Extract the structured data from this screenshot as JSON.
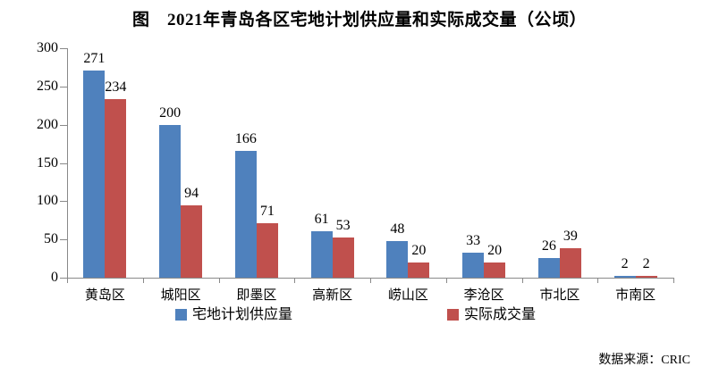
{
  "chart_data": {
    "type": "bar",
    "title": "图　2021年青岛各区宅地计划供应量和实际成交量（公顷）",
    "categories": [
      "黄岛区",
      "城阳区",
      "即墨区",
      "高新区",
      "崂山区",
      "李沧区",
      "市北区",
      "市南区"
    ],
    "series": [
      {
        "name": "宅地计划供应量",
        "color": "#4F81BD",
        "values": [
          271,
          200,
          166,
          61,
          48,
          33,
          26,
          2
        ]
      },
      {
        "name": "实际成交量",
        "color": "#C0504D",
        "values": [
          234,
          94,
          71,
          53,
          20,
          20,
          39,
          2
        ]
      }
    ],
    "xlabel": "",
    "ylabel": "",
    "ylim": [
      0,
      300
    ],
    "ytick_step": 50,
    "ytick_labels": [
      "0",
      "50",
      "100",
      "150",
      "200",
      "250",
      "300"
    ],
    "grid": false,
    "legend_position": "bottom",
    "data_labels": true,
    "axis_color": "#898989"
  },
  "footer": {
    "source_label": "数据来源：CRIC"
  }
}
